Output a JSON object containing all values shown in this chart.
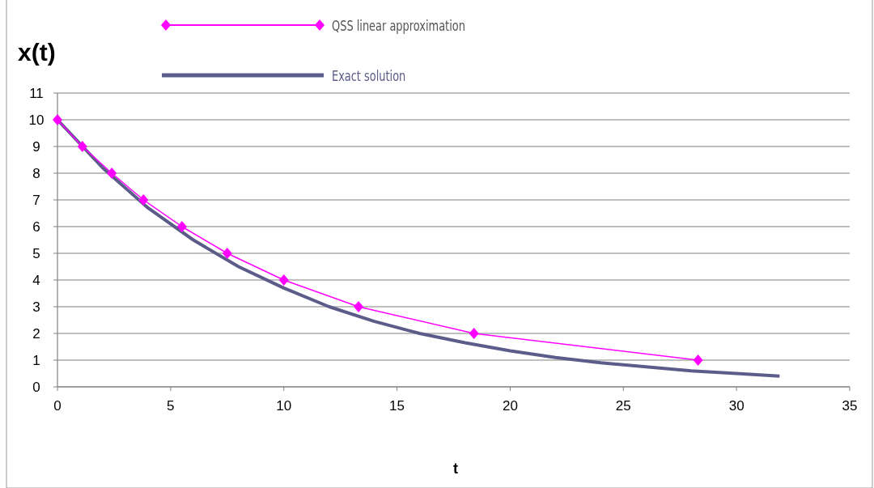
{
  "chart_data": {
    "type": "line",
    "ylabel": "x(t)",
    "xlabel": "t",
    "xlim": [
      0,
      35
    ],
    "xticks": [
      0,
      5,
      10,
      15,
      20,
      25,
      30,
      35
    ],
    "ylim": [
      0,
      11
    ],
    "yticks": [
      0,
      1,
      2,
      3,
      4,
      5,
      6,
      7,
      8,
      9,
      10,
      11
    ],
    "grid": "y",
    "legend": "top left",
    "series": [
      {
        "name": "QSS linear approximation",
        "color": "#ff00ff",
        "marker": "diamond",
        "x": [
          0,
          1.1,
          2.4,
          3.8,
          5.5,
          7.5,
          10,
          13.3,
          18.4,
          28.3
        ],
        "values": [
          10,
          9,
          8,
          7,
          6,
          5,
          4,
          3,
          2,
          1
        ]
      },
      {
        "name": "Exact solution",
        "color": "#5c5c8a",
        "marker": "none",
        "x": [
          0,
          2,
          4,
          6,
          8,
          10,
          12,
          14,
          16,
          18,
          20,
          22,
          24,
          26,
          28,
          30,
          31.9
        ],
        "values": [
          10,
          8.2,
          6.7,
          5.5,
          4.5,
          3.7,
          3.0,
          2.45,
          2.0,
          1.65,
          1.35,
          1.1,
          0.9,
          0.75,
          0.6,
          0.5,
          0.4
        ]
      }
    ]
  }
}
